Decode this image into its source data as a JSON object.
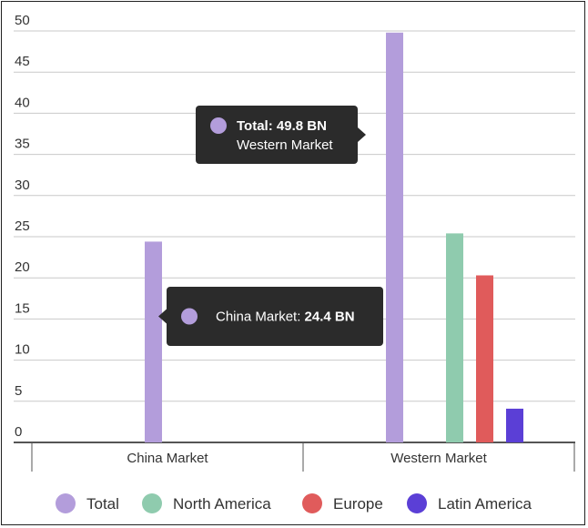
{
  "chart_data": {
    "type": "bar",
    "categories": [
      "China Market",
      "Western Market"
    ],
    "series": [
      {
        "name": "Total",
        "color": "#b39ddb",
        "values": [
          24.4,
          49.8
        ]
      },
      {
        "name": "North America",
        "color": "#8fcbae",
        "values": [
          null,
          25.4
        ]
      },
      {
        "name": "Europe",
        "color": "#e05b5b",
        "values": [
          null,
          20.3
        ]
      },
      {
        "name": "Latin America",
        "color": "#5b3fd6",
        "values": [
          null,
          4.1
        ]
      }
    ],
    "yticks": [
      0,
      5,
      10,
      15,
      20,
      25,
      30,
      35,
      40,
      45,
      50
    ],
    "ylim": [
      0,
      50
    ],
    "grid": true,
    "legend_position": "bottom",
    "tooltips": [
      {
        "marker_color": "#b39ddb",
        "line1_prefix": "",
        "line1_bold": "Total: 49.8 BN",
        "line2": "Western Market"
      },
      {
        "marker_color": "#b39ddb",
        "line1_prefix": "China Market: ",
        "line1_bold": "24.4 BN",
        "line2": ""
      }
    ]
  }
}
